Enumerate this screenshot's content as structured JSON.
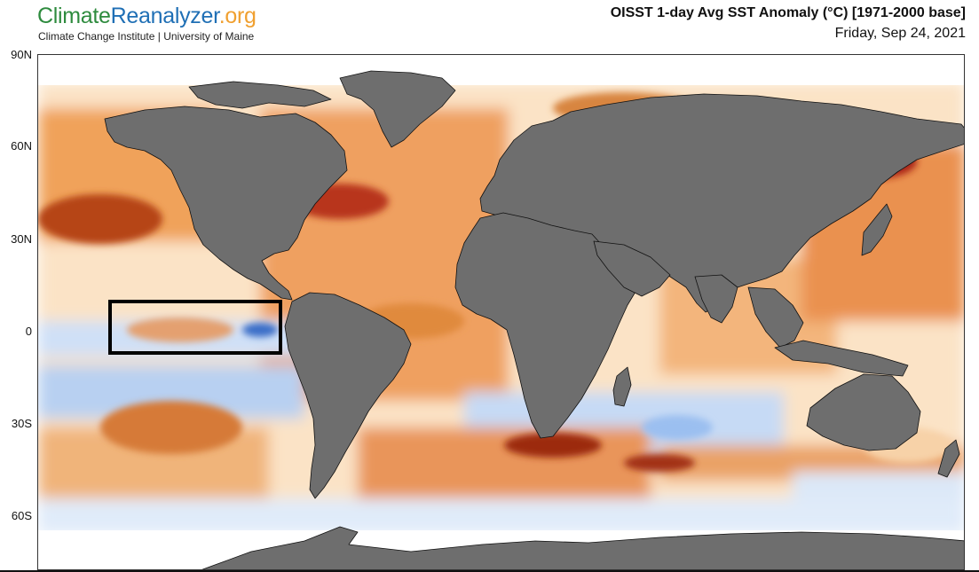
{
  "header": {
    "logo": {
      "part1": "Climate",
      "part2": "Reanalyzer",
      "part3": ".org"
    },
    "subtitle": "Climate Change Institute | University of Maine",
    "title": "OISST 1-day Avg SST Anomaly (°C) [1971-2000 base]",
    "date": "Friday, Sep 24, 2021"
  },
  "axis": {
    "lat_labels": [
      "90N",
      "60N",
      "30N",
      "0",
      "30S",
      "60S"
    ]
  },
  "colors": {
    "land": "#6e6e6e",
    "warm_strong": "#8b1a10",
    "warm": "#c8501a",
    "warm_mid": "#e48a3c",
    "warm_light": "#f6c890",
    "neutral": "#ffffff",
    "cool_light": "#c9dcf5",
    "cool": "#8db4ea",
    "cool_strong": "#2f5fc0",
    "highlight_box": "#000000"
  }
}
